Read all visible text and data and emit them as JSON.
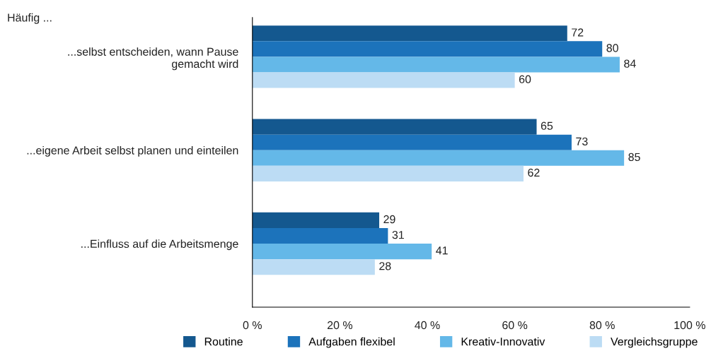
{
  "chart_data": {
    "type": "bar",
    "orientation": "horizontal",
    "categories": [
      "...selbst entscheiden, wann Pause\ngemacht wird",
      "...eigene Arbeit selbst planen und einteilen",
      "...Einfluss auf die Arbeitsmenge"
    ],
    "series": [
      {
        "name": "Routine",
        "color": "#14588f",
        "values": [
          72,
          65,
          29
        ]
      },
      {
        "name": "Aufgaben flexibel",
        "color": "#1c73bb",
        "values": [
          80,
          73,
          31
        ]
      },
      {
        "name": "Kreativ-Innovativ",
        "color": "#64b8e8",
        "values": [
          84,
          85,
          41
        ]
      },
      {
        "name": "Vergleichsgruppe",
        "color": "#bcdcf4",
        "values": [
          60,
          62,
          28
        ]
      }
    ],
    "xlim": [
      0,
      100
    ],
    "xticks": [
      {
        "value": 0,
        "label": "0 %"
      },
      {
        "value": 20,
        "label": "20 %"
      },
      {
        "value": 40,
        "label": "40 %"
      },
      {
        "value": 60,
        "label": "60 %"
      },
      {
        "value": 80,
        "label": "80 %"
      },
      {
        "value": 100,
        "label": "100 %"
      }
    ],
    "annotations": [
      "Häufig ..."
    ],
    "data_labels": true,
    "legend": "bottom",
    "grid": false
  }
}
